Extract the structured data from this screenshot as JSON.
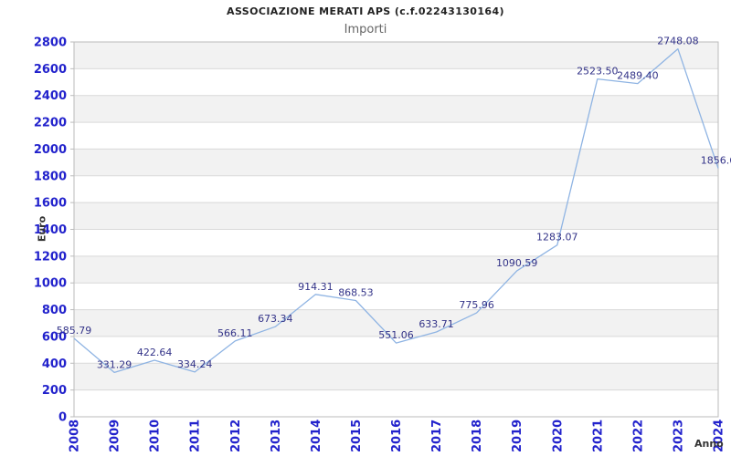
{
  "header": {
    "title": "ASSOCIAZIONE MERATI APS (c.f.02243130164)",
    "subtitle": "Importi"
  },
  "chart_data": {
    "type": "line",
    "title": "ASSOCIAZIONE MERATI APS (c.f.02243130164)",
    "subtitle": "Importi",
    "xlabel": "Anno",
    "ylabel": "Euro",
    "categories": [
      "2008",
      "2009",
      "2010",
      "2011",
      "2012",
      "2013",
      "2014",
      "2015",
      "2016",
      "2017",
      "2018",
      "2019",
      "2020",
      "2021",
      "2022",
      "2023",
      "2024"
    ],
    "values": [
      585.79,
      331.29,
      422.64,
      334.24,
      566.11,
      673.34,
      914.31,
      868.53,
      551.06,
      633.71,
      775.96,
      1090.59,
      1283.07,
      2523.5,
      2489.4,
      2748.08,
      1856.6
    ],
    "point_labels": [
      "585.79",
      "331.29",
      "422.64",
      "334.24",
      "566.11",
      "673.34",
      "914.31",
      "868.53",
      "551.06",
      "633.71",
      "775.96",
      "1090.59",
      "1283.07",
      "2523.50",
      "2489.40",
      "2748.08",
      "1856.6"
    ],
    "ylim": [
      0,
      2800
    ],
    "ytick_step": 200,
    "grid": true,
    "legend_position": "none",
    "colors": {
      "line": "#8fb4e3",
      "tick_label": "#2222cc",
      "point_label": "#333388",
      "band_gray": "#f2f2f2",
      "band_white": "#ffffff",
      "grid_line": "#d9d9d9",
      "plot_border": "#bbbbbb",
      "title": "#222222",
      "subtitle": "#666666",
      "axis_title": "#333333"
    }
  }
}
